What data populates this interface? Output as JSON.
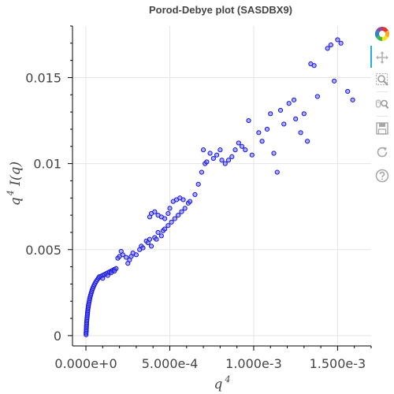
{
  "chart_data": {
    "type": "scatter",
    "title": "Porod-Debye plot (SASDBX9)",
    "xlabel": "q",
    "xlabel_sup": "4",
    "ylabel_pre": "q",
    "ylabel_sup": "4",
    "ylabel_post": " I(q)",
    "xlim": [
      -8e-05,
      0.0017
    ],
    "ylim": [
      -0.0006,
      0.018
    ],
    "x_ticks": [
      0,
      0.0005,
      0.001,
      0.0015
    ],
    "x_tick_labels": [
      "0.000e+0",
      "5.000e-4",
      "1.000e-3",
      "1.500e-3"
    ],
    "y_ticks": [
      0,
      0.005,
      0.01,
      0.015
    ],
    "y_tick_labels": [
      "0",
      "0.005",
      "0.01",
      "0.015"
    ],
    "grid": true,
    "marker_fill": "#6a6af7",
    "marker_stroke": "#1414dc",
    "series": [
      {
        "points": [
          [
            1e-06,
            5e-05
          ],
          [
            1e-06,
            0.00015
          ],
          [
            2e-06,
            0.00025
          ],
          [
            2e-06,
            0.00035
          ],
          [
            3e-06,
            0.00045
          ],
          [
            3e-06,
            0.00055
          ],
          [
            4e-06,
            0.00065
          ],
          [
            4e-06,
            0.00075
          ],
          [
            5e-06,
            0.00085
          ],
          [
            6e-06,
            0.00095
          ],
          [
            7e-06,
            0.00105
          ],
          [
            8e-06,
            0.00115
          ],
          [
            9e-06,
            0.00125
          ],
          [
            1e-05,
            0.00135
          ],
          [
            1.1e-05,
            0.00145
          ],
          [
            1.2e-05,
            0.00155
          ],
          [
            1.4e-05,
            0.00165
          ],
          [
            1.5e-05,
            0.00175
          ],
          [
            1.7e-05,
            0.00185
          ],
          [
            1.9e-05,
            0.00195
          ],
          [
            2.1e-05,
            0.00205
          ],
          [
            2.3e-05,
            0.00215
          ],
          [
            2.5e-05,
            0.00225
          ],
          [
            2.8e-05,
            0.00235
          ],
          [
            3.1e-05,
            0.00245
          ],
          [
            3.4e-05,
            0.00255
          ],
          [
            3.7e-05,
            0.00265
          ],
          [
            4.1e-05,
            0.00275
          ],
          [
            4.5e-05,
            0.00285
          ],
          [
            5e-05,
            0.00295
          ],
          [
            5.5e-05,
            0.00305
          ],
          [
            6.1e-05,
            0.00315
          ],
          [
            6.8e-05,
            0.00325
          ],
          [
            7.5e-05,
            0.00335
          ],
          [
            8e-05,
            0.00342
          ],
          [
            9e-05,
            0.00345
          ],
          [
            0.0001,
            0.0035
          ],
          [
            0.00011,
            0.00355
          ],
          [
            0.00012,
            0.0036
          ],
          [
            0.00013,
            0.00365
          ],
          [
            0.00014,
            0.0037
          ],
          [
            0.00015,
            0.00375
          ],
          [
            0.00016,
            0.0038
          ],
          [
            0.00017,
            0.00385
          ],
          [
            0.00018,
            0.0039
          ],
          [
            0.0001,
            0.00333
          ],
          [
            0.00013,
            0.0035
          ],
          [
            0.00015,
            0.00365
          ],
          [
            0.00017,
            0.00375
          ],
          [
            0.00019,
            0.0045
          ],
          [
            0.0002,
            0.0046
          ],
          [
            0.00021,
            0.0049
          ],
          [
            0.00022,
            0.0047
          ],
          [
            0.00024,
            0.00455
          ],
          [
            0.00025,
            0.0042
          ],
          [
            0.00026,
            0.0044
          ],
          [
            0.00027,
            0.0046
          ],
          [
            0.00028,
            0.0048
          ],
          [
            0.0003,
            0.0047
          ],
          [
            0.00032,
            0.005
          ],
          [
            0.00033,
            0.0052
          ],
          [
            0.00034,
            0.0051
          ],
          [
            0.00036,
            0.0055
          ],
          [
            0.00037,
            0.0054
          ],
          [
            0.00038,
            0.0056
          ],
          [
            0.00039,
            0.0052
          ],
          [
            0.00041,
            0.0057
          ],
          [
            0.00042,
            0.0056
          ],
          [
            0.00043,
            0.006
          ],
          [
            0.00045,
            0.0058
          ],
          [
            0.00046,
            0.0061
          ],
          [
            0.00047,
            0.0062
          ],
          [
            0.00049,
            0.0064
          ],
          [
            0.00051,
            0.0066
          ],
          [
            0.00053,
            0.0068
          ],
          [
            0.00055,
            0.007
          ],
          [
            0.00057,
            0.0072
          ],
          [
            0.00059,
            0.0074
          ],
          [
            0.00061,
            0.0077
          ],
          [
            0.00038,
            0.0069
          ],
          [
            0.00039,
            0.0071
          ],
          [
            0.00041,
            0.0072
          ],
          [
            0.00043,
            0.007
          ],
          [
            0.00045,
            0.0069
          ],
          [
            0.00047,
            0.0068
          ],
          [
            0.00049,
            0.0071
          ],
          [
            0.0005,
            0.0074
          ],
          [
            0.00052,
            0.0078
          ],
          [
            0.00054,
            0.0079
          ],
          [
            0.00056,
            0.008
          ],
          [
            0.00058,
            0.0079
          ],
          [
            0.00062,
            0.0078
          ],
          [
            0.00065,
            0.0082
          ],
          [
            0.00067,
            0.0088
          ],
          [
            0.00069,
            0.0095
          ],
          [
            0.00071,
            0.01
          ],
          [
            0.00072,
            0.0101
          ],
          [
            0.0007,
            0.0108
          ],
          [
            0.00074,
            0.0106
          ],
          [
            0.00076,
            0.0103
          ],
          [
            0.00078,
            0.0105
          ],
          [
            0.0008,
            0.0108
          ],
          [
            0.00081,
            0.0102
          ],
          [
            0.00083,
            0.01
          ],
          [
            0.00085,
            0.0102
          ],
          [
            0.00087,
            0.0104
          ],
          [
            0.00089,
            0.0108
          ],
          [
            0.00091,
            0.0112
          ],
          [
            0.00093,
            0.011
          ],
          [
            0.00095,
            0.0108
          ],
          [
            0.00097,
            0.0125
          ],
          [
            0.00099,
            0.0105
          ],
          [
            0.00103,
            0.0118
          ],
          [
            0.00105,
            0.0113
          ],
          [
            0.00108,
            0.012
          ],
          [
            0.0011,
            0.0129
          ],
          [
            0.00112,
            0.0106
          ],
          [
            0.00114,
            0.0095
          ],
          [
            0.00116,
            0.0131
          ],
          [
            0.00118,
            0.0123
          ],
          [
            0.00121,
            0.0135
          ],
          [
            0.00124,
            0.0137
          ],
          [
            0.00125,
            0.0126
          ],
          [
            0.00128,
            0.0118
          ],
          [
            0.0013,
            0.0129
          ],
          [
            0.00132,
            0.0113
          ],
          [
            0.00134,
            0.0158
          ],
          [
            0.00136,
            0.0157
          ],
          [
            0.00138,
            0.0139
          ],
          [
            0.00144,
            0.0167
          ],
          [
            0.00146,
            0.0169
          ],
          [
            0.00148,
            0.0148
          ],
          [
            0.0015,
            0.0172
          ],
          [
            0.00152,
            0.017
          ],
          [
            0.00156,
            0.0142
          ],
          [
            0.00159,
            0.0137
          ]
        ]
      }
    ]
  },
  "toolbar": {
    "tools": [
      {
        "name": "bokeh-logo"
      },
      {
        "name": "pan-tool"
      },
      {
        "name": "box-zoom-tool"
      },
      {
        "name": "wheel-zoom-tool"
      },
      {
        "name": "save-tool"
      },
      {
        "name": "reset-tool"
      },
      {
        "name": "help-tool"
      }
    ]
  }
}
